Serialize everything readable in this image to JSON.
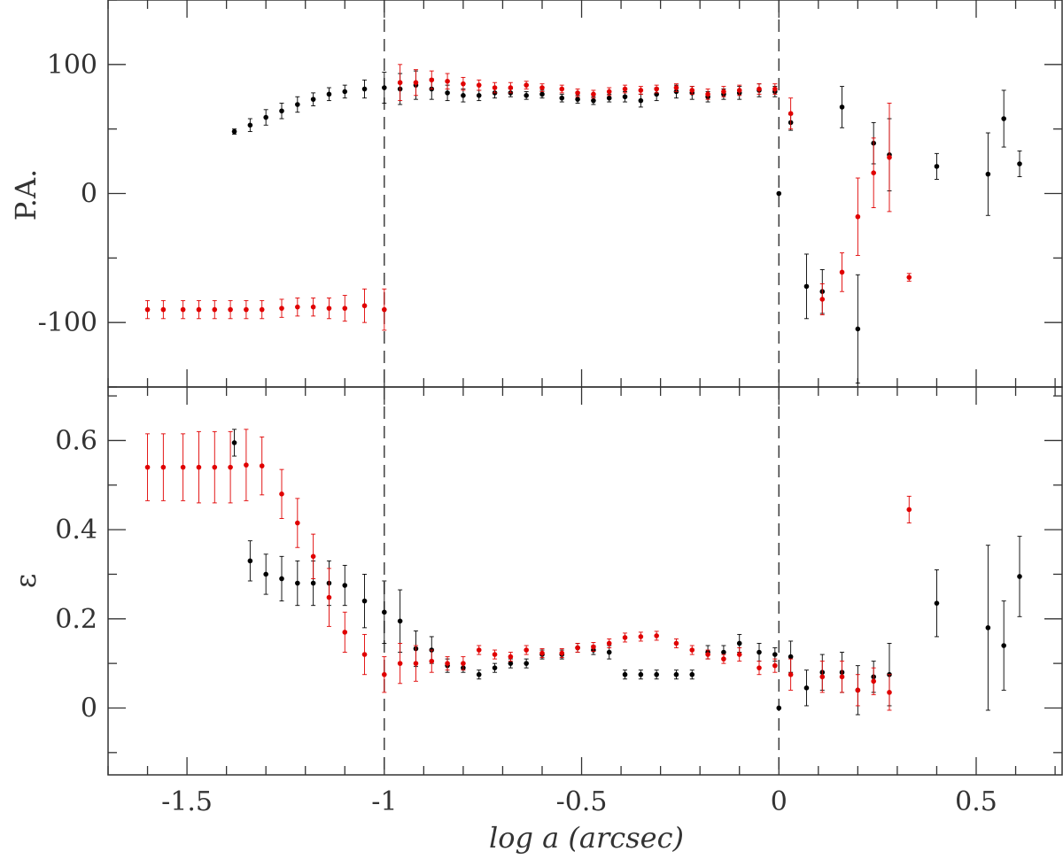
{
  "chart_data": {
    "type": "scatter",
    "xlabel": "log a (arcsec)",
    "xlim": [
      -1.7,
      0.72
    ],
    "x_ticks": [
      "-1.5",
      "-1",
      "-0.5",
      "0",
      "0.5"
    ],
    "vlines": [
      -1,
      0
    ],
    "colors": {
      "black": "#000000",
      "red": "#e00000",
      "dash": "#333333",
      "frame": "#333333"
    },
    "panels": [
      {
        "name": "pa",
        "ylabel": "P.A.",
        "ylim": [
          -150,
          150
        ],
        "y_ticks": [
          "100",
          "0",
          "-100"
        ],
        "series": [
          {
            "name": "black",
            "points": [
              [
                -1.38,
                48,
                2
              ],
              [
                -1.34,
                53,
                5
              ],
              [
                -1.3,
                59,
                6
              ],
              [
                -1.26,
                64,
                6
              ],
              [
                -1.22,
                69,
                6
              ],
              [
                -1.18,
                73,
                5
              ],
              [
                -1.14,
                77,
                5
              ],
              [
                -1.1,
                79,
                5
              ],
              [
                -1.05,
                81,
                7
              ],
              [
                -1.0,
                82,
                12
              ],
              [
                -0.96,
                81,
                12
              ],
              [
                -0.92,
                84,
                11
              ],
              [
                -0.88,
                81,
                8
              ],
              [
                -0.84,
                78,
                6
              ],
              [
                -0.8,
                76,
                5
              ],
              [
                -0.76,
                76,
                4
              ],
              [
                -0.72,
                78,
                4
              ],
              [
                -0.68,
                78,
                3
              ],
              [
                -0.64,
                76,
                3
              ],
              [
                -0.6,
                77,
                3
              ],
              [
                -0.55,
                74,
                3
              ],
              [
                -0.51,
                73,
                3
              ],
              [
                -0.47,
                72,
                3
              ],
              [
                -0.43,
                74,
                3
              ],
              [
                -0.39,
                75,
                4
              ],
              [
                -0.35,
                72,
                5
              ],
              [
                -0.31,
                77,
                5
              ],
              [
                -0.26,
                79,
                5
              ],
              [
                -0.22,
                78,
                5
              ],
              [
                -0.18,
                75,
                4
              ],
              [
                -0.14,
                77,
                4
              ],
              [
                -0.1,
                78,
                5
              ],
              [
                -0.05,
                80,
                5
              ],
              [
                -0.01,
                79,
                4
              ],
              [
                0.0,
                0,
                0
              ],
              [
                0.03,
                55,
                6
              ],
              [
                0.07,
                -72,
                25
              ],
              [
                0.11,
                -76,
                17
              ],
              [
                0.16,
                67,
                16
              ],
              [
                0.2,
                -105,
                42
              ],
              [
                0.24,
                39,
                16
              ],
              [
                0.28,
                30,
                28
              ],
              [
                0.4,
                21,
                10
              ],
              [
                0.53,
                15,
                32
              ],
              [
                0.57,
                58,
                22
              ],
              [
                0.61,
                23,
                10
              ]
            ]
          },
          {
            "name": "red",
            "points": [
              [
                -1.6,
                -90,
                7
              ],
              [
                -1.56,
                -90,
                7
              ],
              [
                -1.51,
                -90,
                7
              ],
              [
                -1.47,
                -90,
                7
              ],
              [
                -1.43,
                -90,
                7
              ],
              [
                -1.39,
                -90,
                7
              ],
              [
                -1.35,
                -90,
                7
              ],
              [
                -1.31,
                -90,
                7
              ],
              [
                -1.26,
                -89,
                7
              ],
              [
                -1.22,
                -88,
                7
              ],
              [
                -1.18,
                -88,
                7
              ],
              [
                -1.14,
                -89,
                8
              ],
              [
                -1.1,
                -89,
                10
              ],
              [
                -1.05,
                -87,
                13
              ],
              [
                -1.0,
                -90,
                16
              ],
              [
                -0.96,
                86,
                14
              ],
              [
                -0.92,
                86,
                10
              ],
              [
                -0.88,
                88,
                7
              ],
              [
                -0.84,
                87,
                6
              ],
              [
                -0.8,
                85,
                5
              ],
              [
                -0.76,
                84,
                4
              ],
              [
                -0.72,
                82,
                4
              ],
              [
                -0.68,
                82,
                4
              ],
              [
                -0.64,
                84,
                3
              ],
              [
                -0.6,
                82,
                3
              ],
              [
                -0.55,
                81,
                3
              ],
              [
                -0.51,
                78,
                3
              ],
              [
                -0.47,
                77,
                3
              ],
              [
                -0.43,
                79,
                3
              ],
              [
                -0.39,
                81,
                3
              ],
              [
                -0.35,
                80,
                3
              ],
              [
                -0.31,
                81,
                3
              ],
              [
                -0.26,
                82,
                3
              ],
              [
                -0.22,
                80,
                3
              ],
              [
                -0.18,
                77,
                4
              ],
              [
                -0.14,
                79,
                4
              ],
              [
                -0.1,
                80,
                4
              ],
              [
                -0.05,
                81,
                4
              ],
              [
                -0.01,
                81,
                4
              ],
              [
                0.03,
                62,
                12
              ],
              [
                0.11,
                -82,
                12
              ],
              [
                0.16,
                -61,
                15
              ],
              [
                0.2,
                -18,
                30
              ],
              [
                0.24,
                16,
                27
              ],
              [
                0.28,
                28,
                42
              ],
              [
                0.33,
                -65,
                3
              ]
            ]
          }
        ]
      },
      {
        "name": "ellipticity",
        "ylabel": "ε",
        "ylim": [
          -0.15,
          0.72
        ],
        "y_ticks": [
          "0.6",
          "0.4",
          "0.2",
          "0"
        ],
        "series": [
          {
            "name": "black",
            "points": [
              [
                -1.38,
                0.595,
                0.03
              ],
              [
                -1.34,
                0.33,
                0.045
              ],
              [
                -1.3,
                0.3,
                0.045
              ],
              [
                -1.26,
                0.29,
                0.05
              ],
              [
                -1.22,
                0.28,
                0.05
              ],
              [
                -1.18,
                0.28,
                0.05
              ],
              [
                -1.14,
                0.28,
                0.05
              ],
              [
                -1.1,
                0.275,
                0.045
              ],
              [
                -1.05,
                0.24,
                0.06
              ],
              [
                -1.0,
                0.215,
                0.07
              ],
              [
                -0.96,
                0.195,
                0.07
              ],
              [
                -0.92,
                0.133,
                0.04
              ],
              [
                -0.88,
                0.13,
                0.03
              ],
              [
                -0.84,
                0.095,
                0.015
              ],
              [
                -0.8,
                0.09,
                0.01
              ],
              [
                -0.76,
                0.075,
                0.01
              ],
              [
                -0.72,
                0.09,
                0.01
              ],
              [
                -0.68,
                0.1,
                0.01
              ],
              [
                -0.64,
                0.1,
                0.01
              ],
              [
                -0.6,
                0.12,
                0.01
              ],
              [
                -0.55,
                0.12,
                0.01
              ],
              [
                -0.51,
                0.135,
                0.01
              ],
              [
                -0.47,
                0.13,
                0.01
              ],
              [
                -0.43,
                0.125,
                0.015
              ],
              [
                -0.39,
                0.075,
                0.01
              ],
              [
                -0.35,
                0.075,
                0.01
              ],
              [
                -0.31,
                0.075,
                0.01
              ],
              [
                -0.26,
                0.075,
                0.01
              ],
              [
                -0.22,
                0.075,
                0.01
              ],
              [
                -0.18,
                0.125,
                0.015
              ],
              [
                -0.14,
                0.125,
                0.015
              ],
              [
                -0.1,
                0.145,
                0.02
              ],
              [
                -0.05,
                0.125,
                0.02
              ],
              [
                -0.01,
                0.12,
                0.015
              ],
              [
                0.0,
                0.0,
                0.0
              ],
              [
                0.03,
                0.115,
                0.035
              ],
              [
                0.07,
                0.045,
                0.04
              ],
              [
                0.11,
                0.08,
                0.04
              ],
              [
                0.16,
                0.08,
                0.045
              ],
              [
                0.2,
                0.04,
                0.055
              ],
              [
                0.24,
                0.07,
                0.035
              ],
              [
                0.28,
                0.075,
                0.07
              ],
              [
                0.4,
                0.235,
                0.075
              ],
              [
                0.53,
                0.18,
                0.185
              ],
              [
                0.57,
                0.14,
                0.1
              ],
              [
                0.61,
                0.295,
                0.09
              ]
            ]
          },
          {
            "name": "red",
            "points": [
              [
                -1.6,
                0.54,
                0.075
              ],
              [
                -1.56,
                0.54,
                0.075
              ],
              [
                -1.51,
                0.54,
                0.075
              ],
              [
                -1.47,
                0.54,
                0.08
              ],
              [
                -1.43,
                0.54,
                0.08
              ],
              [
                -1.39,
                0.54,
                0.08
              ],
              [
                -1.35,
                0.545,
                0.08
              ],
              [
                -1.31,
                0.543,
                0.065
              ],
              [
                -1.26,
                0.48,
                0.055
              ],
              [
                -1.22,
                0.415,
                0.055
              ],
              [
                -1.18,
                0.34,
                0.05
              ],
              [
                -1.14,
                0.248,
                0.065
              ],
              [
                -1.1,
                0.17,
                0.045
              ],
              [
                -1.05,
                0.12,
                0.045
              ],
              [
                -1.0,
                0.075,
                0.04
              ],
              [
                -0.96,
                0.1,
                0.045
              ],
              [
                -0.92,
                0.1,
                0.04
              ],
              [
                -0.88,
                0.105,
                0.025
              ],
              [
                -0.84,
                0.1,
                0.015
              ],
              [
                -0.8,
                0.1,
                0.015
              ],
              [
                -0.76,
                0.13,
                0.01
              ],
              [
                -0.72,
                0.12,
                0.01
              ],
              [
                -0.68,
                0.115,
                0.01
              ],
              [
                -0.64,
                0.13,
                0.01
              ],
              [
                -0.6,
                0.123,
                0.01
              ],
              [
                -0.55,
                0.123,
                0.01
              ],
              [
                -0.51,
                0.135,
                0.01
              ],
              [
                -0.47,
                0.137,
                0.01
              ],
              [
                -0.43,
                0.145,
                0.01
              ],
              [
                -0.39,
                0.158,
                0.01
              ],
              [
                -0.35,
                0.16,
                0.01
              ],
              [
                -0.31,
                0.162,
                0.01
              ],
              [
                -0.26,
                0.145,
                0.01
              ],
              [
                -0.22,
                0.13,
                0.01
              ],
              [
                -0.18,
                0.12,
                0.01
              ],
              [
                -0.14,
                0.11,
                0.01
              ],
              [
                -0.1,
                0.12,
                0.015
              ],
              [
                -0.05,
                0.09,
                0.015
              ],
              [
                -0.01,
                0.095,
                0.015
              ],
              [
                0.03,
                0.075,
                0.035
              ],
              [
                0.11,
                0.07,
                0.035
              ],
              [
                0.16,
                0.07,
                0.035
              ],
              [
                0.2,
                0.04,
                0.035
              ],
              [
                0.24,
                0.06,
                0.03
              ],
              [
                0.28,
                0.035,
                0.04
              ],
              [
                0.33,
                0.445,
                0.03
              ]
            ]
          }
        ]
      }
    ]
  }
}
